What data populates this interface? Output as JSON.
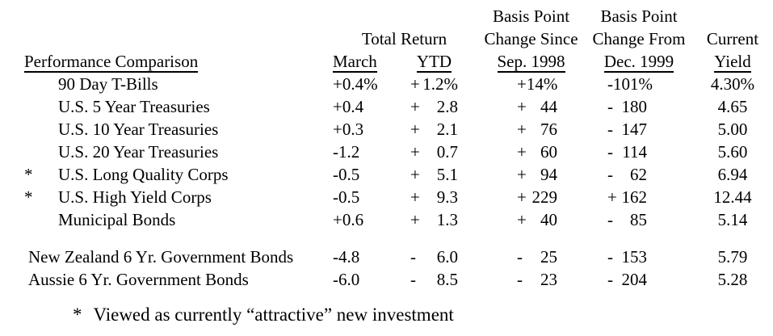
{
  "colors": {
    "background": "#ffffff",
    "text": "#000000"
  },
  "header": {
    "row_label_heading": "Performance Comparison",
    "total_return_group": "Total Return",
    "march": "March",
    "ytd": "YTD",
    "bp_since": {
      "line1": "Basis Point",
      "line2": "Change Since",
      "line3": "Sep. 1998"
    },
    "bp_from": {
      "line1": "Basis Point",
      "line2": "Change From",
      "line3": "Dec. 1999"
    },
    "current_yield": {
      "line1": "Current",
      "line2": "Yield"
    }
  },
  "rows": [
    {
      "star": "",
      "label": "90 Day T-Bills",
      "march": "+0.4%",
      "ytd_sign": "+",
      "ytd": "1.2%",
      "sep_sign": "+",
      "sep": "14%",
      "dec_sign": "-",
      "dec": "101%",
      "yield": "4.30%"
    },
    {
      "star": "",
      "label": "U.S. 5 Year Treasuries",
      "march": "+0.4",
      "ytd_sign": "+",
      "ytd": "2.8",
      "sep_sign": "+",
      "sep": "44",
      "dec_sign": "-",
      "dec": "180",
      "yield": "4.65"
    },
    {
      "star": "",
      "label": "U.S. 10 Year Treasuries",
      "march": "+0.3",
      "ytd_sign": "+",
      "ytd": "2.1",
      "sep_sign": "+",
      "sep": "76",
      "dec_sign": "-",
      "dec": "147",
      "yield": "5.00"
    },
    {
      "star": "",
      "label": "U.S. 20 Year Treasuries",
      "march": "-1.2",
      "ytd_sign": "+",
      "ytd": "0.7",
      "sep_sign": "+",
      "sep": "60",
      "dec_sign": "-",
      "dec": "114",
      "yield": "5.60"
    },
    {
      "star": "*",
      "label": "U.S. Long Quality Corps",
      "march": "-0.5",
      "ytd_sign": "+",
      "ytd": "5.1",
      "sep_sign": "+",
      "sep": "94",
      "dec_sign": "-",
      "dec": "62",
      "yield": "6.94"
    },
    {
      "star": "*",
      "label": "U.S. High Yield Corps",
      "march": "-0.5",
      "ytd_sign": "+",
      "ytd": "9.3",
      "sep_sign": "+",
      "sep": "229",
      "dec_sign": "+",
      "dec": "162",
      "yield": "12.44"
    },
    {
      "star": "",
      "label": "Municipal Bonds",
      "march": "+0.6",
      "ytd_sign": "+",
      "ytd": "1.3",
      "sep_sign": "+",
      "sep": "40",
      "dec_sign": "-",
      "dec": "85",
      "yield": "5.14"
    },
    {
      "star": "",
      "label": "New Zealand 6 Yr. Government Bonds",
      "march": "-4.8",
      "ytd_sign": "-",
      "ytd": "6.0",
      "sep_sign": "-",
      "sep": "25",
      "dec_sign": "-",
      "dec": "153",
      "yield": "5.79"
    },
    {
      "star": "",
      "label": "Aussie 6 Yr. Government Bonds",
      "march": "-6.0",
      "ytd_sign": "-",
      "ytd": "8.5",
      "sep_sign": "-",
      "sep": "23",
      "dec_sign": "-",
      "dec": "204",
      "yield": "5.28"
    }
  ],
  "footnote": {
    "marker": "*",
    "text": "Viewed as currently “attractive” new investment"
  }
}
